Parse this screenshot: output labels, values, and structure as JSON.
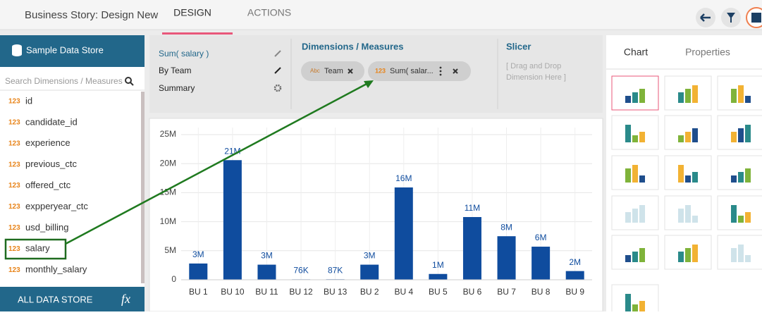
{
  "header": {
    "title": "Business Story: Design New",
    "tabs": [
      "DESIGN",
      "ACTIONS"
    ]
  },
  "data_panel": {
    "title": "Sample Data Store",
    "search_placeholder": "Search Dimensions / Measures",
    "fields": [
      {
        "type": "123",
        "name": "id"
      },
      {
        "type": "123",
        "name": "candidate_id"
      },
      {
        "type": "123",
        "name": "experience"
      },
      {
        "type": "123",
        "name": "previous_ctc"
      },
      {
        "type": "123",
        "name": "offered_ctc"
      },
      {
        "type": "123",
        "name": "expperyear_ctc"
      },
      {
        "type": "123",
        "name": "usd_billing"
      },
      {
        "type": "123",
        "name": "salary"
      },
      {
        "type": "123",
        "name": "monthly_salary"
      }
    ],
    "footer": "ALL DATA STORE",
    "formula_icon": "fx"
  },
  "config": {
    "items": [
      "Sum( salary )",
      "By Team",
      "Summary"
    ],
    "dimensions_title": "Dimensions / Measures",
    "chips": [
      {
        "type": "Abc",
        "label": "Team"
      },
      {
        "type": "123",
        "label": "Sum( salar..."
      }
    ],
    "slicer_title": "Slicer",
    "slicer_hint": [
      "[ Drag and Drop",
      "Dimension Here ]"
    ]
  },
  "side_panel": {
    "tabs": [
      "Chart",
      "Properties"
    ]
  },
  "chart_data": {
    "type": "bar",
    "categories": [
      "BU 1",
      "BU 10",
      "BU 11",
      "BU 12",
      "BU 13",
      "BU 2",
      "BU 4",
      "BU 5",
      "BU 6",
      "BU 7",
      "BU 8",
      "BU 9"
    ],
    "values": [
      2800000,
      20600000,
      2600000,
      76000,
      87000,
      2600000,
      15900000,
      1000000,
      10800000,
      7500000,
      5700000,
      1500000
    ],
    "value_labels": [
      "3M",
      "21M",
      "3M",
      "76K",
      "87K",
      "3M",
      "16M",
      "1M",
      "11M",
      "8M",
      "6M",
      "2M"
    ],
    "color": "#0f4c9e",
    "ylim": [
      0,
      25000000
    ],
    "yticks": [
      0,
      {
        "value": 5000000,
        "label": "5M"
      },
      {
        "value": 10000000,
        "label": "10M"
      },
      {
        "value": 15000000,
        "label": "15M"
      },
      {
        "value": 20000000,
        "label": "20M"
      },
      {
        "value": 25000000,
        "label": "25M"
      }
    ],
    "grid": true
  }
}
